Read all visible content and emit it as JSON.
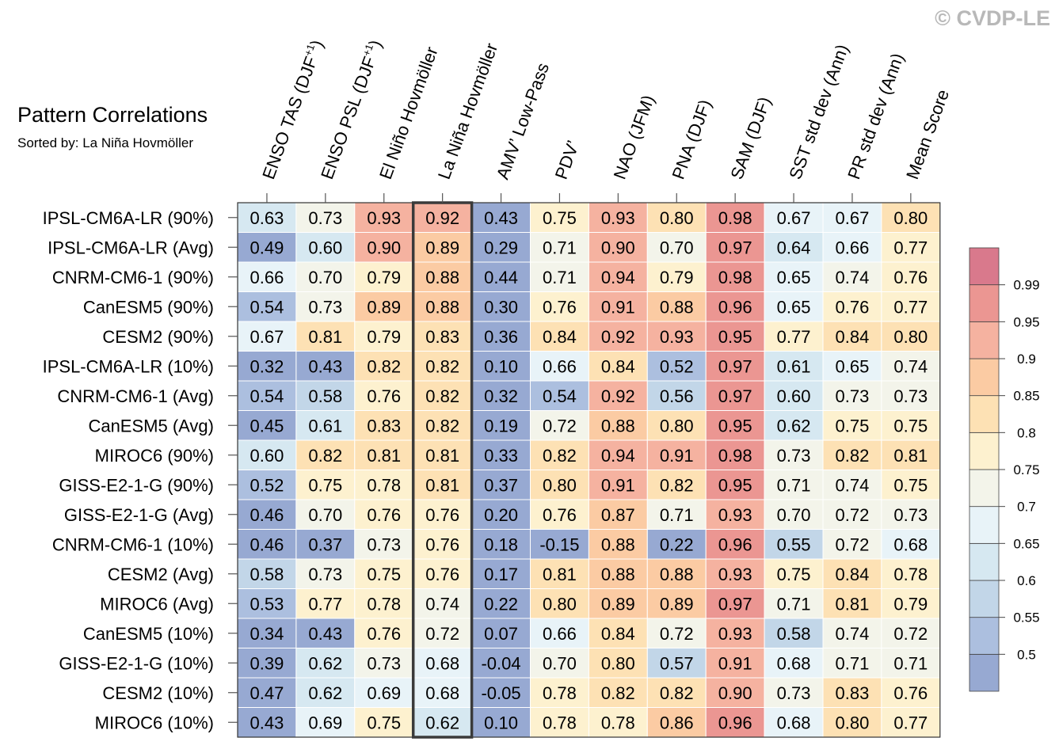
{
  "chart_data": {
    "type": "heatmap",
    "title": "Pattern Correlations",
    "subtitle": "Sorted by: La Niña Hovmöller",
    "copyright": "© CVDP-LE",
    "highlight_column": "La Niña Hovmöller",
    "columns": [
      "ENSO TAS (DJF+1)",
      "ENSO PSL (DJF+1)",
      "El Niño Hovmöller",
      "La Niña Hovmöller",
      "AMV’ Low-Pass",
      "PDV’",
      "NAO (JFM)",
      "PNA (DJF)",
      "SAM (DJF)",
      "SST std dev (Ann)",
      "PR std dev (Ann)",
      "Mean Score"
    ],
    "column_display": [
      {
        "main": "ENSO TAS (DJF",
        "sup": "+1",
        "end": ")"
      },
      {
        "main": "ENSO PSL (DJF",
        "sup": "+1",
        "end": ")"
      },
      {
        "main": "El Niño Hovmöller",
        "sup": "",
        "end": ""
      },
      {
        "main": "La Niña Hovmöller",
        "sup": "",
        "end": ""
      },
      {
        "main": "AMV’ Low-Pass",
        "sup": "",
        "end": ""
      },
      {
        "main": "PDV’",
        "sup": "",
        "end": ""
      },
      {
        "main": "NAO (JFM)",
        "sup": "",
        "end": ""
      },
      {
        "main": "PNA (DJF)",
        "sup": "",
        "end": ""
      },
      {
        "main": "SAM (DJF)",
        "sup": "",
        "end": ""
      },
      {
        "main": "SST std dev (Ann)",
        "sup": "",
        "end": ""
      },
      {
        "main": "PR std dev (Ann)",
        "sup": "",
        "end": ""
      },
      {
        "main": "Mean Score",
        "sup": "",
        "end": ""
      }
    ],
    "rows": [
      "IPSL-CM6A-LR (90%)",
      "IPSL-CM6A-LR (Avg)",
      "CNRM-CM6-1 (90%)",
      "CanESM5 (90%)",
      "CESM2 (90%)",
      "IPSL-CM6A-LR (10%)",
      "CNRM-CM6-1 (Avg)",
      "CanESM5 (Avg)",
      "MIROC6 (90%)",
      "GISS-E2-1-G (90%)",
      "GISS-E2-1-G (Avg)",
      "CNRM-CM6-1 (10%)",
      "CESM2 (Avg)",
      "MIROC6 (Avg)",
      "CanESM5 (10%)",
      "GISS-E2-1-G (10%)",
      "CESM2 (10%)",
      "MIROC6 (10%)"
    ],
    "values": [
      [
        "0.63",
        "0.73",
        "0.93",
        "0.92",
        "0.43",
        "0.75",
        "0.93",
        "0.80",
        "0.98",
        "0.67",
        "0.67",
        "0.80"
      ],
      [
        "0.49",
        "0.60",
        "0.90",
        "0.89",
        "0.29",
        "0.71",
        "0.90",
        "0.70",
        "0.97",
        "0.64",
        "0.66",
        "0.77"
      ],
      [
        "0.66",
        "0.70",
        "0.79",
        "0.88",
        "0.44",
        "0.71",
        "0.94",
        "0.79",
        "0.98",
        "0.65",
        "0.74",
        "0.76"
      ],
      [
        "0.54",
        "0.73",
        "0.89",
        "0.88",
        "0.30",
        "0.76",
        "0.91",
        "0.88",
        "0.96",
        "0.65",
        "0.76",
        "0.77"
      ],
      [
        "0.67",
        "0.81",
        "0.79",
        "0.83",
        "0.36",
        "0.84",
        "0.92",
        "0.93",
        "0.95",
        "0.77",
        "0.84",
        "0.80"
      ],
      [
        "0.32",
        "0.43",
        "0.82",
        "0.82",
        "0.10",
        "0.66",
        "0.84",
        "0.52",
        "0.97",
        "0.61",
        "0.65",
        "0.74"
      ],
      [
        "0.54",
        "0.58",
        "0.76",
        "0.82",
        "0.32",
        "0.54",
        "0.92",
        "0.56",
        "0.97",
        "0.60",
        "0.73",
        "0.73"
      ],
      [
        "0.45",
        "0.61",
        "0.83",
        "0.82",
        "0.19",
        "0.72",
        "0.88",
        "0.80",
        "0.95",
        "0.62",
        "0.75",
        "0.75"
      ],
      [
        "0.60",
        "0.82",
        "0.81",
        "0.81",
        "0.33",
        "0.82",
        "0.94",
        "0.91",
        "0.98",
        "0.73",
        "0.82",
        "0.81"
      ],
      [
        "0.52",
        "0.75",
        "0.78",
        "0.81",
        "0.37",
        "0.80",
        "0.91",
        "0.82",
        "0.95",
        "0.71",
        "0.74",
        "0.75"
      ],
      [
        "0.46",
        "0.70",
        "0.76",
        "0.76",
        "0.20",
        "0.76",
        "0.87",
        "0.71",
        "0.93",
        "0.70",
        "0.72",
        "0.73"
      ],
      [
        "0.46",
        "0.37",
        "0.73",
        "0.76",
        "0.18",
        "-0.15",
        "0.88",
        "0.22",
        "0.96",
        "0.55",
        "0.72",
        "0.68"
      ],
      [
        "0.58",
        "0.73",
        "0.75",
        "0.76",
        "0.17",
        "0.81",
        "0.88",
        "0.88",
        "0.93",
        "0.75",
        "0.84",
        "0.78"
      ],
      [
        "0.53",
        "0.77",
        "0.78",
        "0.74",
        "0.22",
        "0.80",
        "0.89",
        "0.89",
        "0.97",
        "0.71",
        "0.81",
        "0.79"
      ],
      [
        "0.34",
        "0.43",
        "0.76",
        "0.72",
        "0.07",
        "0.66",
        "0.84",
        "0.72",
        "0.93",
        "0.58",
        "0.74",
        "0.72"
      ],
      [
        "0.39",
        "0.62",
        "0.73",
        "0.68",
        "-0.04",
        "0.70",
        "0.80",
        "0.57",
        "0.91",
        "0.68",
        "0.71",
        "0.71"
      ],
      [
        "0.47",
        "0.62",
        "0.69",
        "0.68",
        "-0.05",
        "0.78",
        "0.82",
        "0.82",
        "0.90",
        "0.73",
        "0.83",
        "0.76"
      ],
      [
        "0.43",
        "0.69",
        "0.75",
        "0.62",
        "0.10",
        "0.78",
        "0.78",
        "0.86",
        "0.96",
        "0.68",
        "0.80",
        "0.77"
      ]
    ],
    "colorbar": {
      "levels": [
        0.5,
        0.55,
        0.6,
        0.65,
        0.7,
        0.75,
        0.8,
        0.85,
        0.9,
        0.95,
        0.99
      ],
      "tick_labels": [
        "0.5",
        "0.55",
        "0.6",
        "0.65",
        "0.7",
        "0.75",
        "0.8",
        "0.85",
        "0.9",
        "0.95",
        "0.99"
      ],
      "colors": [
        "#97a9d2",
        "#acbfdf",
        "#c2d6e8",
        "#d6e8f1",
        "#e8f3f8",
        "#f3f4ea",
        "#fdf1cf",
        "#fde1b4",
        "#fbcba3",
        "#f5b2a0",
        "#eb9692",
        "#d9798c"
      ]
    }
  }
}
